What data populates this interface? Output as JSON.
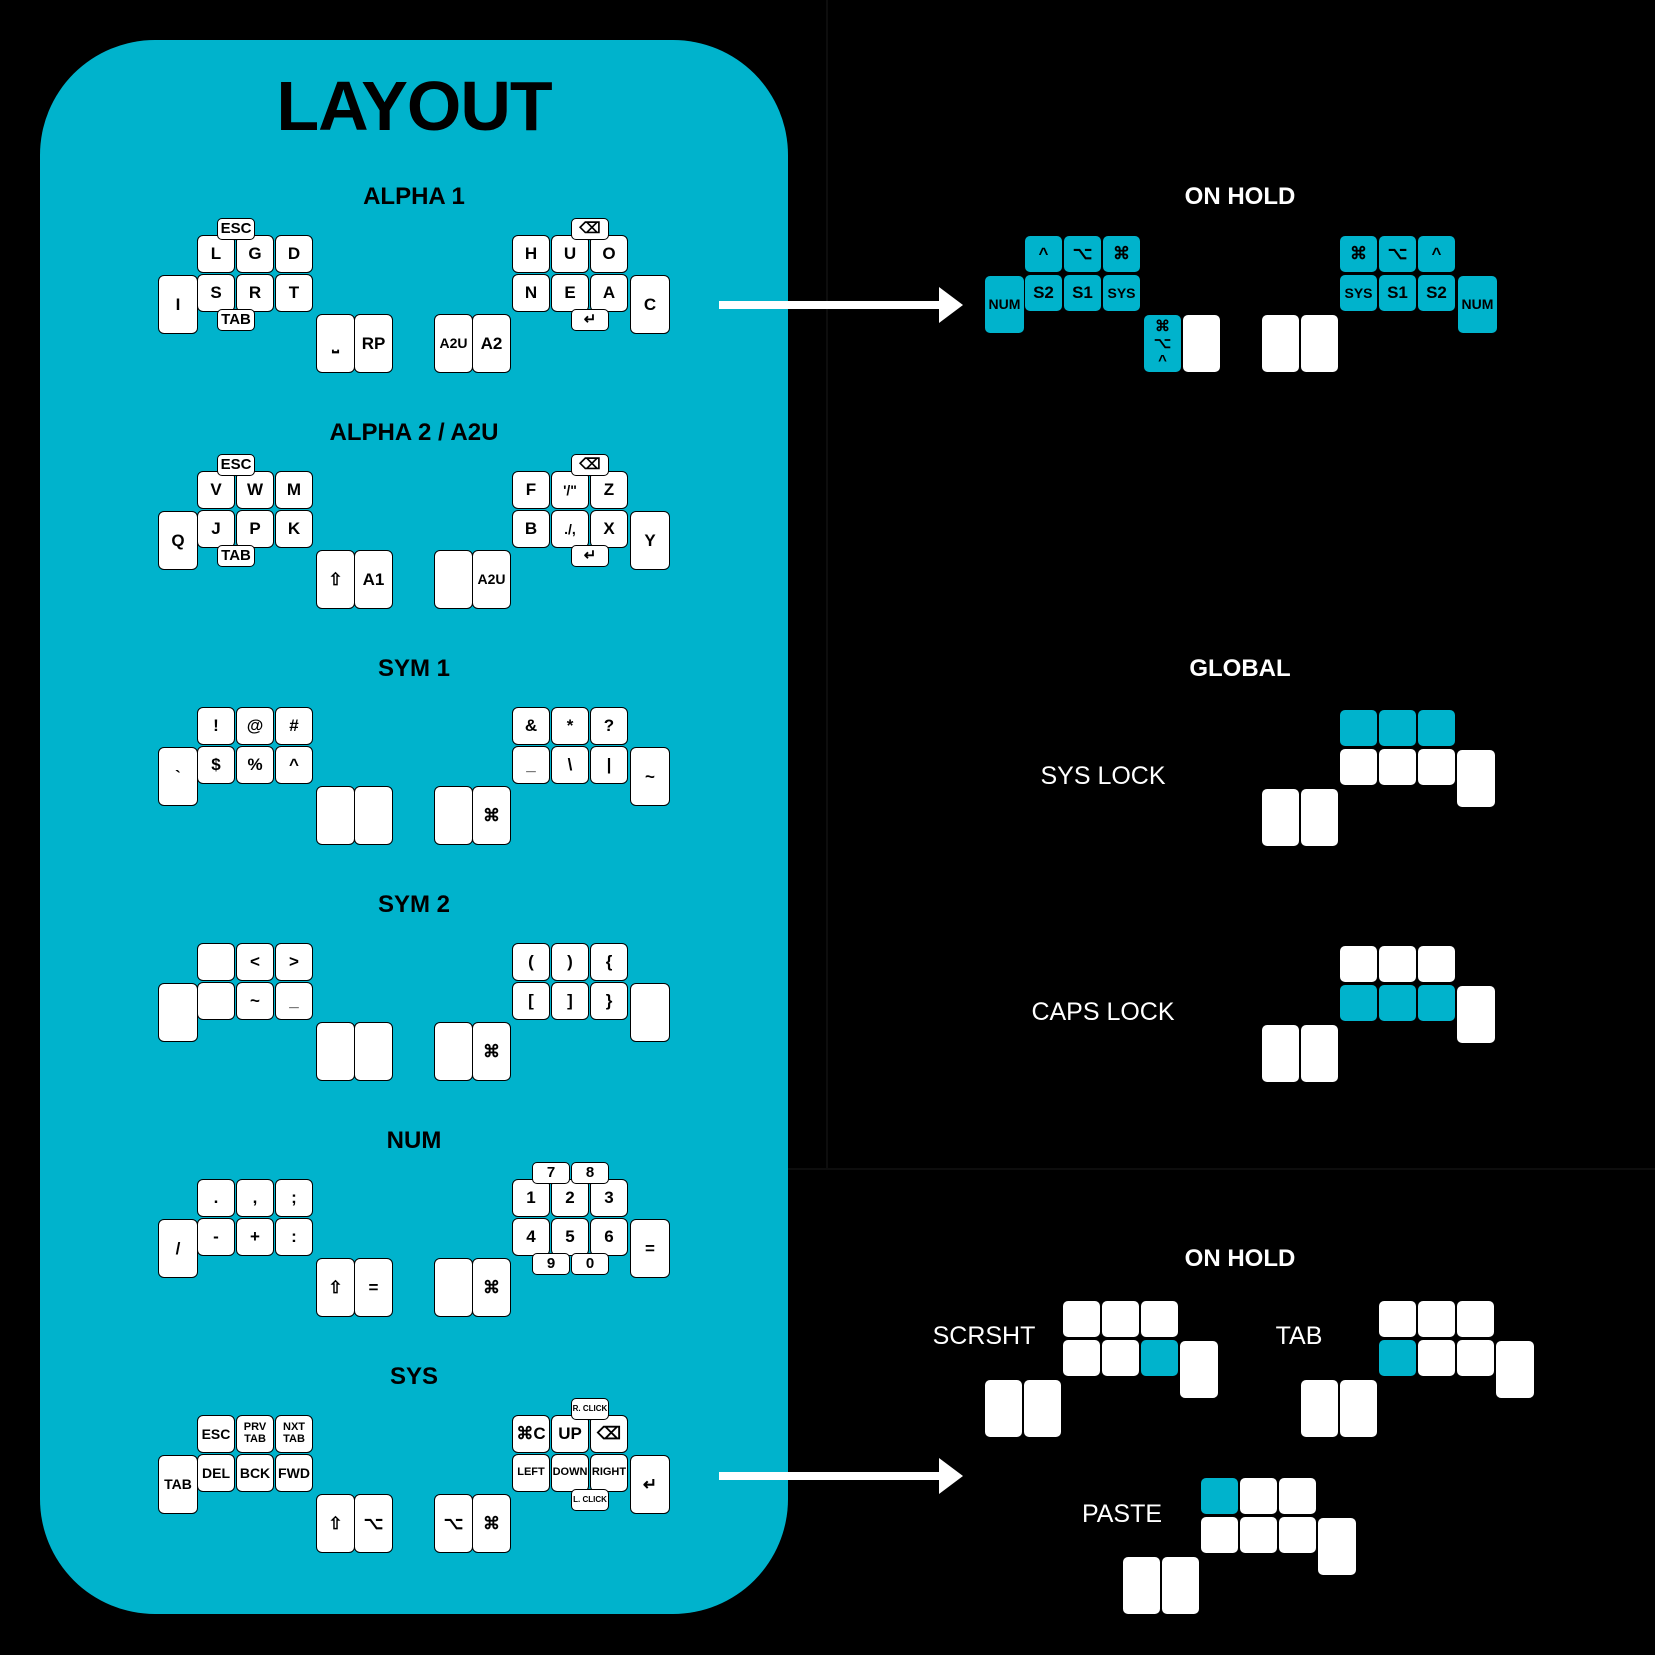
{
  "title": "LAYOUT",
  "layers": [
    {
      "name": "ALPHA 1",
      "left_outer": "I",
      "left_top": [
        "L",
        "G",
        "D"
      ],
      "left_home": [
        "S",
        "R",
        "T"
      ],
      "left_top_extra": "ESC",
      "left_home_extra": "TAB",
      "left_thumbs": [
        "⎵",
        "RP"
      ],
      "right_thumbs": [
        "A2U",
        "A2"
      ],
      "right_top": [
        "H",
        "U",
        "O"
      ],
      "right_home": [
        "N",
        "E",
        "A"
      ],
      "right_top_extra": "⌫",
      "right_home_extra": "↵",
      "right_outer": "C"
    },
    {
      "name": "ALPHA 2 / A2U",
      "left_outer": "Q",
      "left_top": [
        "V",
        "W",
        "M"
      ],
      "left_home": [
        "J",
        "P",
        "K"
      ],
      "left_top_extra": "ESC",
      "left_home_extra": "TAB",
      "left_thumbs": [
        "⇧",
        "A1"
      ],
      "right_thumbs": [
        "",
        "A2U"
      ],
      "right_top": [
        "F",
        "'/\"",
        "Z"
      ],
      "right_home": [
        "B",
        "./,",
        "X"
      ],
      "right_top_extra": "⌫",
      "right_home_extra": "↵",
      "right_outer": "Y"
    },
    {
      "name": "SYM 1",
      "left_outer": "`",
      "left_top": [
        "!",
        "@",
        "#"
      ],
      "left_home": [
        "$",
        "%",
        "^"
      ],
      "left_thumbs": [
        "",
        ""
      ],
      "right_thumbs": [
        "",
        "⌘"
      ],
      "right_top": [
        "&",
        "*",
        "?"
      ],
      "right_home": [
        "_",
        "\\",
        "|"
      ],
      "right_outer": "~"
    },
    {
      "name": "SYM 2",
      "left_outer": "",
      "left_top": [
        "",
        "<",
        ">"
      ],
      "left_home": [
        "",
        "~",
        "_"
      ],
      "left_thumbs": [
        "",
        ""
      ],
      "right_thumbs": [
        "",
        "⌘"
      ],
      "right_top": [
        "(",
        ")",
        "{"
      ],
      "right_home": [
        "[",
        "]",
        "}"
      ],
      "right_outer": ""
    },
    {
      "name": "NUM",
      "left_outer": "/",
      "left_top": [
        ".",
        ",",
        ";"
      ],
      "left_home": [
        "-",
        "+",
        ":"
      ],
      "left_thumbs": [
        "⇧",
        "="
      ],
      "right_thumbs": [
        "",
        "⌘"
      ],
      "right_top": [
        "1",
        "2",
        "3"
      ],
      "right_home": [
        "4",
        "5",
        "6"
      ],
      "right_top_extras": [
        "7",
        "8"
      ],
      "right_home_extras": [
        "9",
        "0"
      ],
      "right_outer": "="
    },
    {
      "name": "SYS",
      "left_outer": "TAB",
      "left_top": [
        "ESC",
        "PRV TAB",
        "NXT TAB"
      ],
      "left_home": [
        "DEL",
        "BCK",
        "FWD"
      ],
      "left_thumbs": [
        "⇧",
        "⌥"
      ],
      "right_thumbs": [
        "⌥",
        "⌘"
      ],
      "right_top": [
        "⌘C",
        "UP",
        "⌫"
      ],
      "right_home": [
        "LEFT",
        "DOWN",
        "RIGHT"
      ],
      "right_top_extra": "R. CLICK",
      "right_home_extra": "L. CLICK",
      "right_outer": "↵"
    }
  ],
  "on_hold_top": {
    "title": "ON HOLD",
    "left_top": [
      "^",
      "⌥",
      "⌘"
    ],
    "left_home": [
      "S2",
      "S1",
      "SYS"
    ],
    "left_outer": "NUM",
    "left_thumb_stack": [
      "⌘",
      "⌥",
      "^"
    ],
    "right_top": [
      "⌘",
      "⌥",
      "^"
    ],
    "right_home": [
      "SYS",
      "S1",
      "S2"
    ],
    "right_outer": "NUM"
  },
  "global": {
    "title": "GLOBAL",
    "items": [
      {
        "label": "SYS LOCK"
      },
      {
        "label": "CAPS LOCK"
      }
    ]
  },
  "on_hold_bottom": {
    "title": "ON HOLD",
    "items": [
      {
        "label": "SCRSHT"
      },
      {
        "label": "TAB"
      },
      {
        "label": "PASTE"
      }
    ]
  },
  "colors": {
    "accent": "#00b3cc",
    "background": "#000000",
    "key": "#ffffff"
  }
}
